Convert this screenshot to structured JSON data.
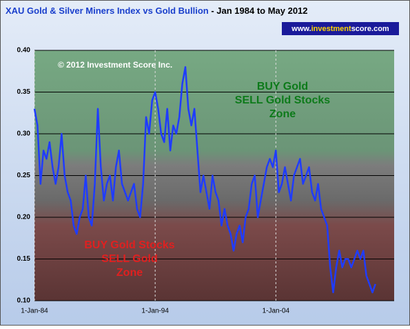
{
  "chart_data": {
    "type": "line",
    "title": "XAU Gold & Silver Miners Index vs Gold Bullion",
    "subtitle": " - Jan 1984 to May 2012",
    "badge": [
      "www.",
      "investment",
      "score.com"
    ],
    "copyright": "© 2012 Investment Score Inc.",
    "annotations": {
      "upper": [
        "BUY Gold",
        "SELL Gold Stocks",
        "Zone"
      ],
      "lower": [
        "BUY Gold Stocks",
        "SELL Gold",
        "Zone"
      ]
    },
    "x": [
      1984,
      1984.25,
      1984.5,
      1984.75,
      1985,
      1985.25,
      1985.5,
      1985.75,
      1986,
      1986.25,
      1986.5,
      1986.75,
      1987,
      1987.25,
      1987.5,
      1987.75,
      1988,
      1988.25,
      1988.5,
      1988.75,
      1989,
      1989.25,
      1989.5,
      1989.75,
      1990,
      1990.25,
      1990.5,
      1990.75,
      1991,
      1991.25,
      1991.5,
      1991.75,
      1992,
      1992.25,
      1992.5,
      1992.75,
      1993,
      1993.25,
      1993.5,
      1993.75,
      1994,
      1994.25,
      1994.5,
      1994.75,
      1995,
      1995.25,
      1995.5,
      1995.75,
      1996,
      1996.25,
      1996.5,
      1996.75,
      1997,
      1997.25,
      1997.5,
      1997.75,
      1998,
      1998.25,
      1998.5,
      1998.75,
      1999,
      1999.25,
      1999.5,
      1999.75,
      2000,
      2000.25,
      2000.5,
      2000.75,
      2001,
      2001.25,
      2001.5,
      2001.75,
      2002,
      2002.25,
      2002.5,
      2002.75,
      2003,
      2003.25,
      2003.5,
      2003.75,
      2004,
      2004.25,
      2004.5,
      2004.75,
      2005,
      2005.25,
      2005.5,
      2005.75,
      2006,
      2006.25,
      2006.5,
      2006.75,
      2007,
      2007.25,
      2007.5,
      2007.75,
      2008,
      2008.25,
      2008.5,
      2008.75,
      2009,
      2009.25,
      2009.5,
      2009.75,
      2010,
      2010.25,
      2010.5,
      2010.75,
      2011,
      2011.25,
      2011.5,
      2011.75,
      2012,
      2012.25
    ],
    "series": [
      {
        "name": "XAU / Gold",
        "color": "#1f3cff",
        "values": [
          0.33,
          0.31,
          0.24,
          0.28,
          0.27,
          0.29,
          0.26,
          0.24,
          0.26,
          0.3,
          0.25,
          0.23,
          0.22,
          0.19,
          0.18,
          0.2,
          0.21,
          0.25,
          0.2,
          0.19,
          0.24,
          0.33,
          0.26,
          0.22,
          0.24,
          0.25,
          0.22,
          0.26,
          0.28,
          0.24,
          0.23,
          0.22,
          0.23,
          0.24,
          0.21,
          0.2,
          0.24,
          0.32,
          0.3,
          0.34,
          0.35,
          0.33,
          0.3,
          0.29,
          0.33,
          0.28,
          0.31,
          0.3,
          0.32,
          0.36,
          0.38,
          0.33,
          0.31,
          0.33,
          0.28,
          0.23,
          0.25,
          0.23,
          0.21,
          0.25,
          0.23,
          0.22,
          0.19,
          0.21,
          0.19,
          0.18,
          0.16,
          0.18,
          0.19,
          0.17,
          0.2,
          0.21,
          0.24,
          0.25,
          0.2,
          0.22,
          0.24,
          0.26,
          0.27,
          0.26,
          0.28,
          0.23,
          0.24,
          0.26,
          0.24,
          0.22,
          0.25,
          0.26,
          0.27,
          0.24,
          0.25,
          0.26,
          0.23,
          0.22,
          0.24,
          0.21,
          0.2,
          0.19,
          0.14,
          0.11,
          0.14,
          0.16,
          0.14,
          0.15,
          0.15,
          0.14,
          0.15,
          0.16,
          0.15,
          0.16,
          0.13,
          0.12,
          0.11,
          0.12
        ]
      }
    ],
    "xlim": [
      1984,
      2013.8
    ],
    "xticks": [
      {
        "value": 1984,
        "label": "1-Jan-84"
      },
      {
        "value": 1994,
        "label": "1-Jan-94"
      },
      {
        "value": 2004,
        "label": "1-Jan-04"
      }
    ],
    "ylim": [
      0.1,
      0.4
    ],
    "yticks": [
      {
        "value": 0.1,
        "label": "0.10"
      },
      {
        "value": 0.15,
        "label": "0.15"
      },
      {
        "value": 0.2,
        "label": "0.20"
      },
      {
        "value": 0.25,
        "label": "0.25"
      },
      {
        "value": 0.3,
        "label": "0.30"
      },
      {
        "value": 0.35,
        "label": "0.35"
      },
      {
        "value": 0.4,
        "label": "0.40"
      }
    ],
    "grid": true
  }
}
